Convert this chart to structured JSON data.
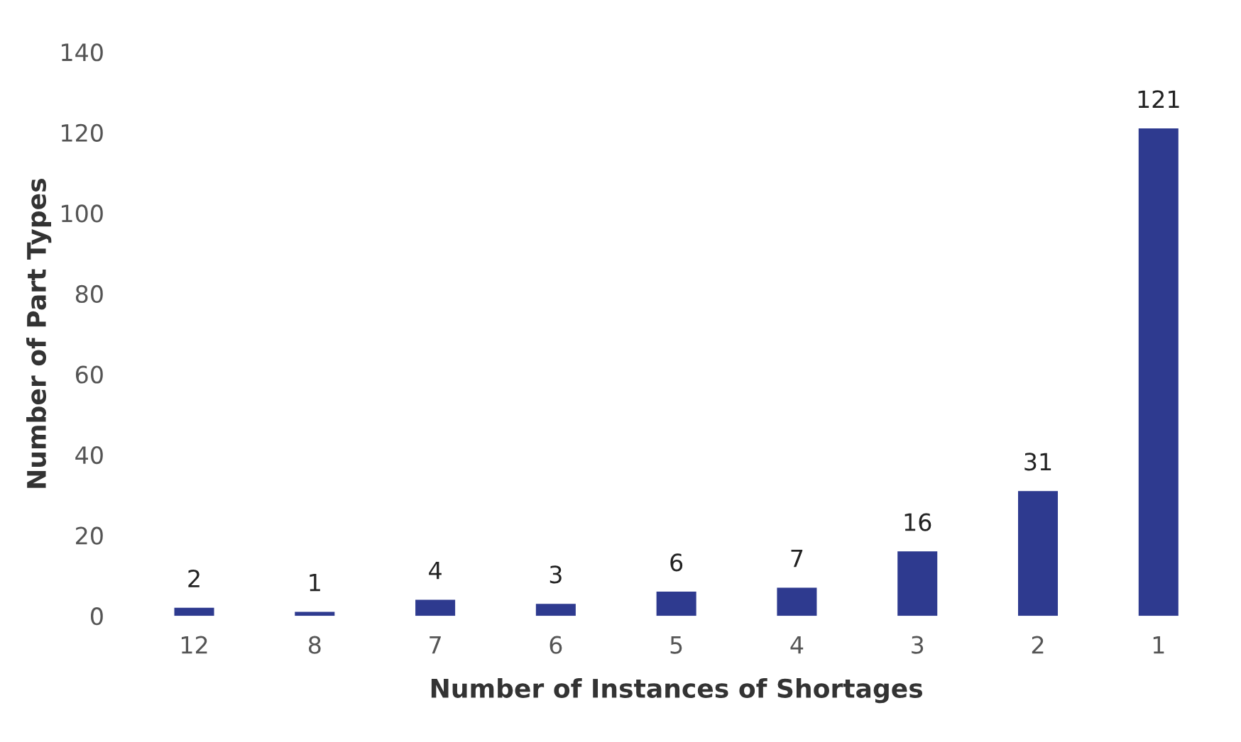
{
  "chart_data": {
    "type": "bar",
    "xlabel": "Number of Instances of Shortages",
    "ylabel": "Number of Part Types",
    "categories": [
      "12",
      "8",
      "7",
      "6",
      "5",
      "4",
      "3",
      "2",
      "1"
    ],
    "values": [
      2,
      1,
      4,
      3,
      6,
      7,
      16,
      31,
      121
    ],
    "color": "#2e3a8f",
    "ylim": [
      0,
      140
    ],
    "yticks": [
      0,
      20,
      40,
      60,
      80,
      100,
      120,
      140
    ],
    "data_labels": true,
    "grid": false
  }
}
